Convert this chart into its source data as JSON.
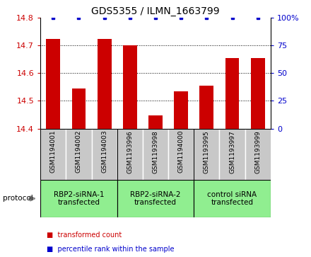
{
  "title": "GDS5355 / ILMN_1663799",
  "samples": [
    "GSM1194001",
    "GSM1194002",
    "GSM1194003",
    "GSM1193996",
    "GSM1193998",
    "GSM1194000",
    "GSM1193995",
    "GSM1193997",
    "GSM1193999"
  ],
  "red_values": [
    14.725,
    14.545,
    14.725,
    14.7,
    14.448,
    14.535,
    14.555,
    14.655,
    14.655
  ],
  "blue_values": [
    100,
    100,
    100,
    100,
    100,
    100,
    100,
    100,
    100
  ],
  "ylim": [
    14.4,
    14.8
  ],
  "y2lim": [
    0,
    100
  ],
  "yticks": [
    14.4,
    14.5,
    14.6,
    14.7,
    14.8
  ],
  "y2ticks": [
    0,
    25,
    50,
    75,
    100
  ],
  "y2ticklabels": [
    "0",
    "25",
    "50",
    "75",
    "100%"
  ],
  "groups": [
    {
      "label": "RBP2-siRNA-1\ntransfected",
      "indices": [
        0,
        1,
        2
      ],
      "color": "#90EE90"
    },
    {
      "label": "RBP2-siRNA-2\ntransfected",
      "indices": [
        3,
        4,
        5
      ],
      "color": "#90EE90"
    },
    {
      "label": "control siRNA\ntransfected",
      "indices": [
        6,
        7,
        8
      ],
      "color": "#90EE90"
    }
  ],
  "protocol_label": "protocol",
  "red_color": "#CC0000",
  "blue_color": "#0000CC",
  "bar_width": 0.55,
  "sample_bg_color": "#C8C8C8",
  "group_bg_color": "#90EE90",
  "legend_items": [
    {
      "color": "#CC0000",
      "label": "transformed count"
    },
    {
      "color": "#0000CC",
      "label": "percentile rank within the sample"
    }
  ]
}
